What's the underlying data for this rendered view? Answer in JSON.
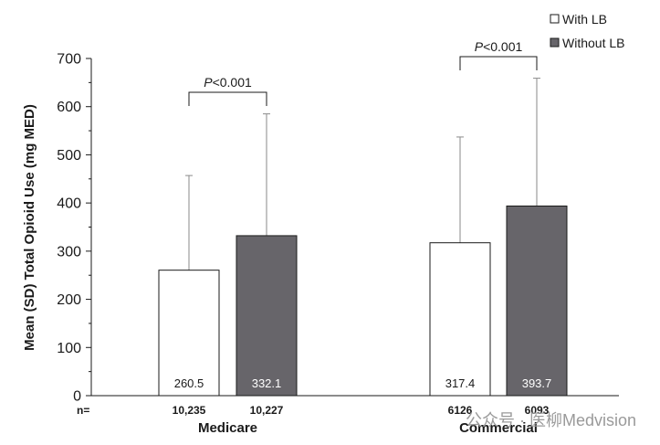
{
  "chart_data": {
    "type": "bar",
    "title": "",
    "ylabel": "Mean (SD) Total Opioid Use (mg MED)",
    "ylim": [
      0,
      700
    ],
    "yticks": [
      0,
      100,
      200,
      300,
      400,
      500,
      600,
      700
    ],
    "n_label": "n=",
    "groups": [
      {
        "name": "Medicare",
        "n": [
          "10,235",
          "10,227"
        ],
        "p_value_label": "<0.001"
      },
      {
        "name": "Commercial",
        "n": [
          "6126",
          "6093"
        ],
        "p_value_label": "<0.001"
      }
    ],
    "series": [
      {
        "name": "With LB",
        "color": "#ffffff",
        "label_color": "#1a1a1a",
        "values": [
          260.5,
          317.4
        ],
        "sd_upper": [
          457,
          537
        ]
      },
      {
        "name": "Without LB",
        "color": "#67656a",
        "label_color": "#ffffff",
        "values": [
          332.1,
          393.7
        ],
        "sd_upper": [
          585,
          659
        ]
      }
    ],
    "p_prefix": "P",
    "legend_position": "top-right",
    "grid": false
  },
  "watermark": {
    "text": "公众号 · 医柳Medvision"
  }
}
